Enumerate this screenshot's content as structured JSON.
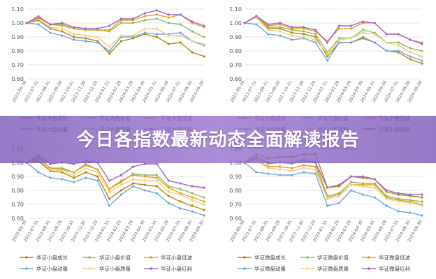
{
  "banner": {
    "title": "今日各指数最新动态全面解读报告"
  },
  "chart_data": [
    {
      "type": "line",
      "categories": [
        "2023-06-30",
        "2023-07-31",
        "2023-08-31",
        "2023-09-28",
        "2023-10-31",
        "2023-11-30",
        "2023-12-29",
        "2024-01-31",
        "2024-02-29",
        "2024-03-29",
        "2024-04-30",
        "2024-05-31",
        "2024-06-28",
        "2024-07-31",
        "2024-08-30",
        "2024-09-30"
      ],
      "ylim": [
        0.6,
        1.1
      ],
      "yticks": [
        "0.60",
        "0.70",
        "0.80",
        "0.90",
        "1.00",
        "1.10"
      ],
      "legend": [
        "华证大盘成长",
        "华证大盘价值",
        "华证大盘低波",
        "华证大盘动量",
        "华证大盘质量",
        "华证大盘红利"
      ],
      "series": [
        {
          "name": "华证大盘成长",
          "color": "#b8860b",
          "values": [
            1.0,
            1.02,
            0.96,
            0.94,
            0.9,
            0.89,
            0.87,
            0.78,
            0.87,
            0.89,
            0.92,
            0.9,
            0.85,
            0.86,
            0.79,
            0.76
          ]
        },
        {
          "name": "华证大盘价值",
          "color": "#8fbc5f",
          "values": [
            1.0,
            1.04,
            0.99,
            0.99,
            0.96,
            0.95,
            0.95,
            0.94,
            1.0,
            1.0,
            1.02,
            1.03,
            1.0,
            0.99,
            0.94,
            0.9
          ]
        },
        {
          "name": "华证大盘低波",
          "color": "#e8a020",
          "values": [
            1.0,
            1.05,
            0.99,
            0.98,
            0.96,
            0.95,
            0.95,
            0.95,
            1.02,
            1.02,
            1.05,
            1.06,
            1.04,
            1.06,
            1.0,
            0.97
          ]
        },
        {
          "name": "华证大盘动量",
          "color": "#6fa8dc",
          "values": [
            1.0,
            0.99,
            0.93,
            0.91,
            0.88,
            0.87,
            0.86,
            0.8,
            0.9,
            0.9,
            0.93,
            0.92,
            0.92,
            0.93,
            0.87,
            0.84
          ]
        },
        {
          "name": "华证大盘质量",
          "color": "#f0d080",
          "values": [
            1.0,
            1.03,
            0.97,
            0.96,
            0.92,
            0.91,
            0.9,
            0.83,
            0.91,
            0.91,
            0.96,
            0.96,
            0.91,
            0.91,
            0.87,
            0.85
          ]
        },
        {
          "name": "华证大盘红利",
          "color": "#a066c8",
          "values": [
            1.0,
            1.04,
            0.99,
            1.0,
            0.97,
            0.96,
            0.96,
            0.98,
            1.03,
            1.03,
            1.07,
            1.09,
            1.06,
            1.06,
            1.01,
            0.98
          ]
        }
      ]
    },
    {
      "type": "line",
      "categories": [
        "2023-06-30",
        "2023-07-31",
        "2023-08-31",
        "2023-09-28",
        "2023-10-31",
        "2023-11-30",
        "2023-12-29",
        "2024-01-31",
        "2024-02-29",
        "2024-03-29",
        "2024-04-30",
        "2024-05-31",
        "2024-06-28",
        "2024-07-31",
        "2024-08-30",
        "2024-09-30"
      ],
      "ylim": [
        0.6,
        1.1
      ],
      "yticks": [
        "0.60",
        "0.70",
        "0.80",
        "0.90",
        "1.00",
        "1.10"
      ],
      "legend": [
        "华证中盘成长",
        "华证中盘价值",
        "华证中盘低波",
        "华证中盘动量",
        "华证中盘质量",
        "华证中盘红利"
      ],
      "series": [
        {
          "name": "华证中盘成长",
          "color": "#b8860b",
          "values": [
            1.0,
            1.05,
            0.96,
            0.96,
            0.93,
            0.92,
            0.9,
            0.76,
            0.86,
            0.86,
            0.89,
            0.86,
            0.8,
            0.79,
            0.74,
            0.71
          ]
        },
        {
          "name": "华证中盘价值",
          "color": "#8fbc5f",
          "values": [
            1.0,
            1.05,
            0.97,
            0.97,
            0.95,
            0.94,
            0.92,
            0.79,
            0.89,
            0.89,
            0.95,
            0.93,
            0.86,
            0.86,
            0.82,
            0.8
          ]
        },
        {
          "name": "华证中盘低波",
          "color": "#e8a020",
          "values": [
            1.0,
            1.05,
            0.98,
            0.99,
            0.96,
            0.96,
            0.94,
            0.87,
            0.96,
            0.96,
            1.0,
            1.0,
            0.92,
            0.92,
            0.88,
            0.86
          ]
        },
        {
          "name": "华证中盘动量",
          "color": "#6fa8dc",
          "values": [
            1.0,
            0.99,
            0.92,
            0.91,
            0.88,
            0.89,
            0.86,
            0.73,
            0.86,
            0.86,
            0.9,
            0.86,
            0.8,
            0.8,
            0.76,
            0.73
          ]
        },
        {
          "name": "华证中盘质量",
          "color": "#f0d080",
          "values": [
            1.0,
            1.04,
            0.95,
            0.94,
            0.91,
            0.9,
            0.88,
            0.78,
            0.88,
            0.89,
            0.93,
            0.92,
            0.86,
            0.84,
            0.79,
            0.76
          ]
        },
        {
          "name": "华证中盘红利",
          "color": "#a066c8",
          "values": [
            1.0,
            1.05,
            0.99,
            1.0,
            0.97,
            0.97,
            0.95,
            0.86,
            0.98,
            0.98,
            1.01,
            1.0,
            0.92,
            0.92,
            0.88,
            0.85
          ]
        }
      ]
    },
    {
      "type": "line",
      "categories": [
        "2023-06-30",
        "2023-07-31",
        "2023-08-31",
        "2023-09-28",
        "2023-10-31",
        "2023-11-30",
        "2023-12-29",
        "2024-01-31",
        "2024-02-29",
        "2024-03-29",
        "2024-04-30",
        "2024-05-31",
        "2024-06-28",
        "2024-07-31",
        "2024-08-30",
        "2024-09-30"
      ],
      "ylim": [
        0.6,
        1.1
      ],
      "yticks": [
        "0.60",
        "0.70",
        "0.80",
        "0.90",
        "1.00",
        "1.10"
      ],
      "legend": [
        "华证小盘成长",
        "华证小盘价值",
        "华证小盘低波",
        "华证小盘动量",
        "华证小盘质量",
        "华证小盘红利"
      ],
      "series": [
        {
          "name": "华证小盘成长",
          "color": "#b8860b",
          "values": [
            1.0,
            1.01,
            0.94,
            0.93,
            0.89,
            0.93,
            0.9,
            0.74,
            0.8,
            0.85,
            0.84,
            0.83,
            0.76,
            0.72,
            0.69,
            0.66
          ]
        },
        {
          "name": "华证小盘价值",
          "color": "#8fbc5f",
          "values": [
            1.0,
            1.04,
            0.96,
            0.96,
            0.93,
            0.99,
            0.95,
            0.81,
            0.86,
            0.92,
            0.91,
            0.91,
            0.83,
            0.81,
            0.78,
            0.75
          ]
        },
        {
          "name": "华证小盘低波",
          "color": "#e8a020",
          "values": [
            1.0,
            1.03,
            0.96,
            0.95,
            0.93,
            0.98,
            0.95,
            0.81,
            0.87,
            0.91,
            0.9,
            0.89,
            0.82,
            0.78,
            0.75,
            0.72
          ]
        },
        {
          "name": "华证小盘动量",
          "color": "#6fa8dc",
          "values": [
            1.0,
            0.93,
            0.89,
            0.88,
            0.86,
            0.89,
            0.87,
            0.69,
            0.77,
            0.83,
            0.8,
            0.78,
            0.71,
            0.67,
            0.65,
            0.62
          ]
        },
        {
          "name": "华证小盘质量",
          "color": "#f0d080",
          "values": [
            1.0,
            1.02,
            0.95,
            0.94,
            0.91,
            0.96,
            0.93,
            0.79,
            0.84,
            0.88,
            0.87,
            0.87,
            0.79,
            0.77,
            0.73,
            0.7
          ]
        },
        {
          "name": "华证小盘红利",
          "color": "#a066c8",
          "values": [
            1.0,
            1.05,
            0.99,
            1.0,
            0.99,
            1.01,
            1.0,
            0.87,
            0.91,
            0.97,
            0.99,
            0.99,
            0.87,
            0.85,
            0.83,
            0.82
          ]
        }
      ]
    },
    {
      "type": "line",
      "categories": [
        "2023-06-30",
        "2023-07-31",
        "2023-08-31",
        "2023-09-28",
        "2023-10-31",
        "2023-11-30",
        "2023-12-29",
        "2024-01-31",
        "2024-02-29",
        "2024-03-29",
        "2024-04-30",
        "2024-05-31",
        "2024-06-28",
        "2024-07-31",
        "2024-08-30",
        "2024-09-30"
      ],
      "ylim": [
        0.6,
        1.1
      ],
      "yticks": [
        "0.60",
        "0.70",
        "0.80",
        "0.90",
        "1.00",
        "1.10"
      ],
      "legend": [
        "华证微盘成长",
        "华证微盘价值",
        "华证微盘低波",
        "华证微盘动量",
        "华证微盘质量",
        "华证微盘红利"
      ],
      "series": [
        {
          "name": "华证微盘成长",
          "color": "#b8860b",
          "values": [
            1.0,
            1.06,
            1.03,
            1.04,
            1.04,
            1.06,
            1.06,
            0.82,
            0.83,
            0.9,
            0.89,
            0.88,
            0.79,
            0.77,
            0.76,
            0.75
          ]
        },
        {
          "name": "华证微盘价值",
          "color": "#8fbc5f",
          "values": [
            1.0,
            1.03,
            0.99,
            1.0,
            0.99,
            1.01,
            1.0,
            0.76,
            0.78,
            0.86,
            0.85,
            0.85,
            0.76,
            0.74,
            0.73,
            0.72
          ]
        },
        {
          "name": "华证微盘低波",
          "color": "#e8a020",
          "values": [
            1.0,
            1.02,
            0.97,
            0.97,
            0.96,
            0.98,
            0.97,
            0.75,
            0.77,
            0.84,
            0.84,
            0.84,
            0.75,
            0.73,
            0.72,
            0.7
          ]
        },
        {
          "name": "华证微盘动量",
          "color": "#6fa8dc",
          "values": [
            1.0,
            0.93,
            0.92,
            0.91,
            0.91,
            0.93,
            0.92,
            0.69,
            0.71,
            0.8,
            0.77,
            0.75,
            0.69,
            0.65,
            0.64,
            0.62
          ]
        },
        {
          "name": "华证微盘质量",
          "color": "#f0d080",
          "values": [
            1.0,
            1.01,
            0.96,
            0.95,
            0.94,
            0.96,
            0.95,
            0.74,
            0.76,
            0.84,
            0.83,
            0.82,
            0.74,
            0.72,
            0.71,
            0.69
          ]
        },
        {
          "name": "华证微盘红利",
          "color": "#a066c8",
          "values": [
            1.0,
            1.04,
            1.0,
            1.0,
            1.0,
            1.02,
            1.0,
            0.82,
            0.84,
            0.9,
            0.9,
            0.88,
            0.8,
            0.78,
            0.77,
            0.77
          ]
        }
      ]
    }
  ]
}
